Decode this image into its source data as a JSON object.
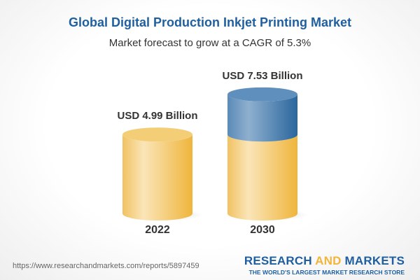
{
  "title": "Global Digital Production Inkjet Printing Market",
  "subtitle": "Market forecast to grow at a CAGR of 5.3%",
  "chart_data": {
    "type": "bar",
    "style": "3d-cylinder",
    "categories": [
      "2022",
      "2030"
    ],
    "values": [
      4.99,
      7.53
    ],
    "data_labels": [
      "USD 4.99 Billion",
      "USD 7.53 Billion"
    ],
    "unit": "USD Billion",
    "colors": {
      "base": "#f2c460",
      "growth": "#4a7fb0"
    }
  },
  "footer": {
    "url": "https://www.researchandmarkets.com/reports/5897459",
    "logo_research": "RESEARCH",
    "logo_and": "AND",
    "logo_markets": "MARKETS",
    "logo_tagline": "THE WORLD'S LARGEST MARKET RESEARCH STORE"
  }
}
